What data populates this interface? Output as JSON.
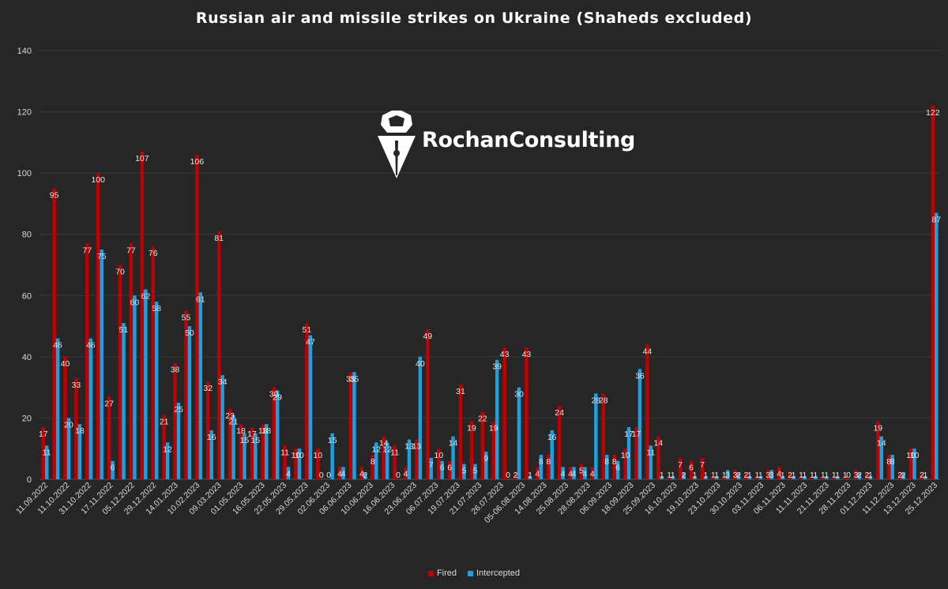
{
  "chart_data": {
    "type": "bar",
    "title": "Russian air and missile strikes on Ukraine (Shaheds excluded)",
    "ylim": [
      0,
      140
    ],
    "yticks": [
      0,
      20,
      40,
      60,
      80,
      100,
      120,
      140
    ],
    "grid": true,
    "legend_position": "bottom",
    "colors": {
      "Fired": "#c00000",
      "Intercepted": "#1ba1e2",
      "background": "#262626",
      "grid": "#3a3a3a",
      "text": "#d9d9d9"
    },
    "xtick_labels": [
      "11.09.2022",
      "11.10.2022",
      "31.10.2022",
      "17.11.2022",
      "05.12.2022",
      "29.12.2022",
      "14.01.2023",
      "10.02.2023",
      "09.03.2023",
      "01.05.2023",
      "16.05.2023",
      "22.05.2023",
      "29.05.2023",
      "02.06.2023",
      "06.06.2023",
      "10.06.2023",
      "16.06.2023",
      "23.06.2023",
      "06.07.2023",
      "19.07.2023",
      "21.07.2023",
      "26.07.2023",
      "05-06.08.2023",
      "14.08.2023",
      "25.08.2023",
      "28.08.2023",
      "06.09.2023",
      "18.09.2023",
      "25.09.2023",
      "16.10.2023",
      "19.10.2023",
      "23.10.2023",
      "30.10.2023",
      "03.11.2023",
      "06.11.2023",
      "11.11.2023",
      "21.11.2023",
      "28.11.2023",
      "01.12.2023",
      "11.12.2023",
      "13.12.2023",
      "25.12.2023"
    ],
    "series": [
      {
        "name": "Fired",
        "values": [
          17,
          95,
          40,
          33,
          77,
          100,
          27,
          70,
          77,
          107,
          76,
          21,
          38,
          55,
          106,
          32,
          81,
          23,
          18,
          17,
          18,
          30,
          11,
          10,
          51,
          10,
          0,
          4,
          35,
          4,
          8,
          14,
          11,
          4,
          13,
          49,
          10,
          6,
          31,
          19,
          22,
          19,
          43,
          2,
          43,
          4,
          8,
          24,
          4,
          5,
          4,
          28,
          8,
          10,
          17,
          44,
          14,
          1,
          7,
          6,
          7,
          1,
          1,
          3,
          2,
          1,
          3,
          4,
          2,
          1,
          1,
          1,
          1,
          1,
          3,
          2,
          19,
          8,
          2,
          10,
          2,
          122
        ]
      },
      {
        "name": "Intercepted",
        "values": [
          11,
          46,
          20,
          18,
          46,
          75,
          6,
          51,
          60,
          62,
          58,
          12,
          25,
          50,
          61,
          16,
          34,
          21,
          15,
          15,
          18,
          29,
          4,
          10,
          47,
          0,
          15,
          4,
          35,
          2,
          12,
          12,
          0,
          13,
          40,
          7,
          6,
          14,
          5,
          5,
          9,
          39,
          0,
          30,
          1,
          8,
          16,
          4,
          4,
          4,
          28,
          8,
          6,
          17,
          36,
          11,
          1,
          1,
          2,
          1,
          1,
          1,
          3,
          2,
          1,
          1,
          3,
          1,
          1,
          1,
          1,
          1,
          1,
          0,
          2,
          1,
          14,
          8,
          2,
          10,
          1,
          87
        ]
      }
    ]
  },
  "brand": {
    "name": "RochanConsulting"
  },
  "legend": {
    "fired_label": "Fired",
    "intercepted_label": "Intercepted"
  }
}
